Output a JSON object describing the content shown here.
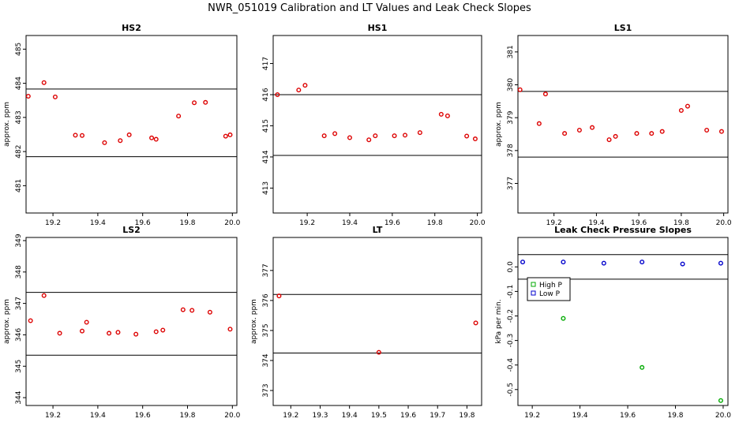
{
  "title": "NWR_051019  Calibration and LT Values and Leak Check Slopes",
  "chart_data": [
    {
      "id": "hs2",
      "type": "scatter",
      "title": "HS2",
      "ylabel": "approx. ppm",
      "xlim": [
        19.08,
        20.02
      ],
      "ylim": [
        480.2,
        485.4
      ],
      "xticks": [
        19.2,
        19.4,
        19.6,
        19.8,
        20.0
      ],
      "xtick_labels": [
        "19.2",
        "19.4",
        "19.6",
        "19.8",
        "20.0"
      ],
      "yticks": [
        481,
        482,
        483,
        484,
        485
      ],
      "ytick_labels": [
        "481",
        "482",
        "483",
        "484",
        "485"
      ],
      "hlines": [
        483.83,
        481.85
      ],
      "marker": "circle",
      "color": "#dd0000",
      "series": [
        {
          "name": "HS2",
          "x": [
            19.09,
            19.16,
            19.21,
            19.3,
            19.33,
            19.43,
            19.5,
            19.54,
            19.64,
            19.66,
            19.76,
            19.83,
            19.88,
            19.97,
            19.99
          ],
          "y": [
            483.62,
            484.02,
            483.6,
            482.48,
            482.47,
            482.26,
            482.32,
            482.49,
            482.4,
            482.36,
            483.04,
            483.43,
            483.44,
            482.45,
            482.49
          ]
        }
      ]
    },
    {
      "id": "hs1",
      "type": "scatter",
      "title": "HS1",
      "ylabel": "",
      "xlim": [
        19.04,
        20.02
      ],
      "ylim": [
        412.2,
        417.9
      ],
      "xticks": [
        19.2,
        19.4,
        19.6,
        19.8,
        20.0
      ],
      "xtick_labels": [
        "19.2",
        "19.4",
        "19.6",
        "19.8",
        "20.0"
      ],
      "yticks": [
        413,
        414,
        415,
        416,
        417
      ],
      "ytick_labels": [
        "413",
        "414",
        "415",
        "416",
        "417"
      ],
      "hlines": [
        416.0,
        414.05
      ],
      "marker": "circle",
      "color": "#dd0000",
      "series": [
        {
          "name": "HS1",
          "x": [
            19.06,
            19.16,
            19.19,
            19.28,
            19.33,
            19.4,
            19.49,
            19.52,
            19.61,
            19.66,
            19.73,
            19.83,
            19.86,
            19.95,
            19.99
          ],
          "y": [
            416.0,
            416.15,
            416.3,
            414.68,
            414.75,
            414.62,
            414.55,
            414.68,
            414.68,
            414.7,
            414.78,
            415.37,
            415.32,
            414.67,
            414.58
          ]
        }
      ]
    },
    {
      "id": "ls1",
      "type": "scatter",
      "title": "LS1",
      "ylabel": "approx. ppm",
      "xlim": [
        19.03,
        20.02
      ],
      "ylim": [
        376.1,
        381.5
      ],
      "xticks": [
        19.2,
        19.4,
        19.6,
        19.8,
        20.0
      ],
      "xtick_labels": [
        "19.2",
        "19.4",
        "19.6",
        "19.8",
        "20.0"
      ],
      "yticks": [
        377,
        378,
        379,
        380,
        381
      ],
      "ytick_labels": [
        "377",
        "378",
        "379",
        "380",
        "381"
      ],
      "hlines": [
        379.8,
        377.8
      ],
      "marker": "circle",
      "color": "#dd0000",
      "series": [
        {
          "name": "LS1",
          "x": [
            19.04,
            19.13,
            19.16,
            19.25,
            19.32,
            19.38,
            19.46,
            19.49,
            19.59,
            19.66,
            19.71,
            19.8,
            19.83,
            19.92,
            19.99
          ],
          "y": [
            379.85,
            378.82,
            379.72,
            378.52,
            378.62,
            378.7,
            378.33,
            378.43,
            378.52,
            378.52,
            378.58,
            379.22,
            379.35,
            378.62,
            378.58
          ]
        }
      ]
    },
    {
      "id": "ls2",
      "type": "scatter",
      "title": "LS2",
      "ylabel": "approx. ppm",
      "xlim": [
        19.08,
        20.02
      ],
      "ylim": [
        343.75,
        349.1
      ],
      "xticks": [
        19.2,
        19.4,
        19.6,
        19.8,
        20.0
      ],
      "xtick_labels": [
        "19.2",
        "19.4",
        "19.6",
        "19.8",
        "20.0"
      ],
      "yticks": [
        344,
        345,
        346,
        347,
        348,
        349
      ],
      "ytick_labels": [
        "344",
        "345",
        "346",
        "347",
        "348",
        "349"
      ],
      "hlines": [
        347.35,
        345.35
      ],
      "marker": "circle",
      "color": "#dd0000",
      "series": [
        {
          "name": "LS2",
          "x": [
            19.1,
            19.16,
            19.23,
            19.33,
            19.35,
            19.45,
            19.49,
            19.57,
            19.66,
            19.69,
            19.78,
            19.82,
            19.9,
            19.99
          ],
          "y": [
            346.45,
            347.25,
            346.05,
            346.12,
            346.4,
            346.05,
            346.08,
            346.02,
            346.1,
            346.15,
            346.8,
            346.78,
            346.72,
            346.18
          ]
        }
      ]
    },
    {
      "id": "lt",
      "type": "scatter",
      "title": "LT",
      "ylabel": "approx. ppm",
      "xlim": [
        19.14,
        19.85
      ],
      "ylim": [
        372.5,
        378.1
      ],
      "xticks": [
        19.2,
        19.3,
        19.4,
        19.5,
        19.6,
        19.7,
        19.8
      ],
      "xtick_labels": [
        "19.2",
        "19.3",
        "19.4",
        "19.5",
        "19.6",
        "19.7",
        "19.8"
      ],
      "yticks": [
        373,
        374,
        375,
        376,
        377
      ],
      "ytick_labels": [
        "373",
        "374",
        "375",
        "376",
        "377"
      ],
      "hlines": [
        376.2,
        374.25
      ],
      "marker": "circle",
      "color": "#dd0000",
      "series": [
        {
          "name": "LT",
          "x": [
            19.16,
            19.5,
            19.83
          ],
          "y": [
            376.15,
            374.27,
            375.25
          ]
        }
      ]
    },
    {
      "id": "leak",
      "type": "scatter",
      "title": "Leak Check Pressure Slopes",
      "ylabel": "kPa per min.",
      "xlim": [
        19.14,
        20.02
      ],
      "ylim": [
        -0.565,
        0.12
      ],
      "xticks": [
        19.2,
        19.4,
        19.6,
        19.8,
        20.0
      ],
      "xtick_labels": [
        "19.2",
        "19.4",
        "19.6",
        "19.8",
        "20.0"
      ],
      "yticks": [
        0.0,
        -0.1,
        -0.2,
        -0.3,
        -0.4,
        -0.5
      ],
      "ytick_labels": [
        "0.0",
        "-0.1",
        "-0.2",
        "-0.3",
        "-0.4",
        "-0.5"
      ],
      "hlines": [
        0.05,
        -0.05
      ],
      "legend_position": "top-left",
      "series": [
        {
          "name": "High P",
          "color": "#00aa00",
          "marker": "circle",
          "x": [
            19.33,
            19.66,
            19.99
          ],
          "y": [
            -0.21,
            -0.41,
            -0.545
          ]
        },
        {
          "name": "Low P",
          "color": "#0000cc",
          "marker": "circle",
          "x": [
            19.16,
            19.33,
            19.5,
            19.66,
            19.83,
            19.99
          ],
          "y": [
            0.02,
            0.02,
            0.015,
            0.02,
            0.012,
            0.015
          ]
        }
      ]
    }
  ]
}
